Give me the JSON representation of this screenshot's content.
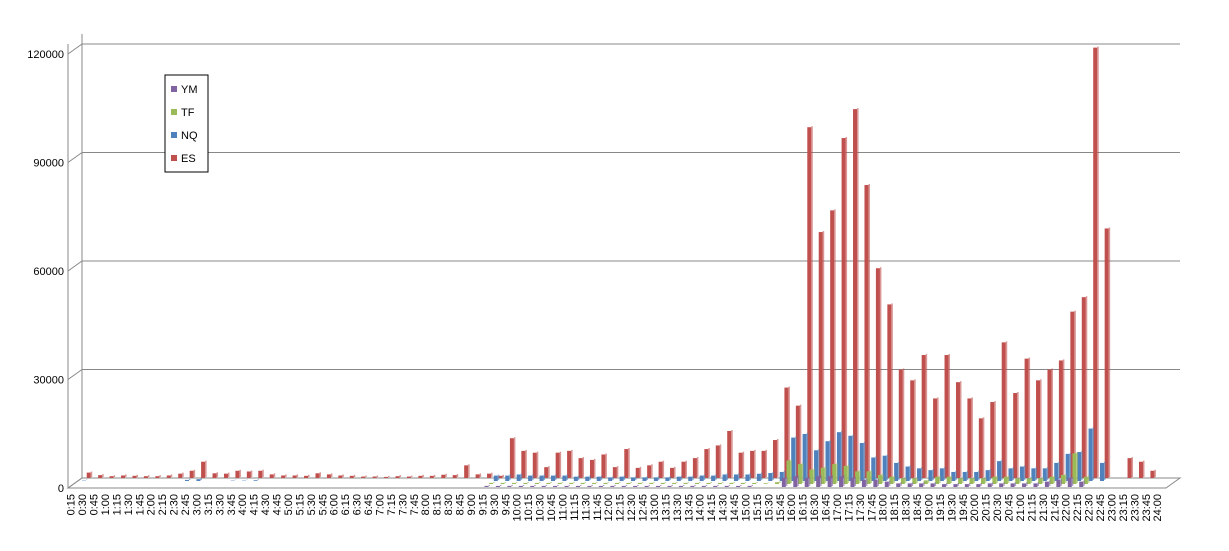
{
  "chart_data": {
    "type": "bar3d",
    "categories": [
      "0:15",
      "0:30",
      "0:45",
      "1:00",
      "1:15",
      "1:30",
      "1:45",
      "2:00",
      "2:15",
      "2:30",
      "2:45",
      "3:00",
      "3:15",
      "3:30",
      "3:45",
      "4:00",
      "4:15",
      "4:30",
      "4:45",
      "5:00",
      "5:15",
      "5:30",
      "5:45",
      "6:00",
      "6:15",
      "6:30",
      "6:45",
      "7:00",
      "7:15",
      "7:30",
      "7:45",
      "8:00",
      "8:15",
      "8:30",
      "8:45",
      "9:00",
      "9:15",
      "9:30",
      "9:45",
      "10:00",
      "10:15",
      "10:30",
      "10:45",
      "11:00",
      "11:15",
      "11:30",
      "11:45",
      "12:00",
      "12:15",
      "12:30",
      "12:45",
      "13:00",
      "13:15",
      "13:30",
      "13:45",
      "14:00",
      "14:15",
      "14:30",
      "14:45",
      "15:00",
      "15:15",
      "15:30",
      "15:45",
      "16:00",
      "16:15",
      "16:30",
      "16:45",
      "17:00",
      "17:15",
      "17:30",
      "17:45",
      "18:00",
      "18:15",
      "18:30",
      "18:45",
      "19:00",
      "19:15",
      "19:30",
      "19:45",
      "20:00",
      "20:15",
      "20:30",
      "20:45",
      "21:00",
      "21:15",
      "21:30",
      "21:45",
      "22:00",
      "22:15",
      "22:30",
      "22:45",
      "23:00",
      "23:15",
      "23:30",
      "23:45",
      "24:00"
    ],
    "series": [
      {
        "name": "YM",
        "color": "#8064a2",
        "values": [
          0,
          0,
          0,
          0,
          0,
          0,
          0,
          0,
          0,
          0,
          0,
          0,
          0,
          0,
          0,
          0,
          0,
          0,
          0,
          0,
          0,
          0,
          0,
          0,
          0,
          0,
          0,
          0,
          0,
          0,
          0,
          0,
          0,
          0,
          0,
          0,
          300,
          300,
          300,
          300,
          300,
          300,
          300,
          300,
          300,
          300,
          300,
          300,
          300,
          300,
          300,
          300,
          300,
          300,
          300,
          300,
          300,
          300,
          300,
          300,
          0,
          0,
          2500,
          3000,
          2500,
          3000,
          3000,
          3000,
          2500,
          2000,
          2000,
          1500,
          1000,
          1000,
          1000,
          1000,
          800,
          800,
          800,
          800,
          1000,
          1000,
          1000,
          1000,
          1000,
          1500,
          2000,
          2500,
          1500,
          0,
          0,
          0,
          0,
          0,
          0,
          0
        ]
      },
      {
        "name": "TF",
        "color": "#9bbb59",
        "values": [
          0,
          0,
          0,
          0,
          0,
          0,
          0,
          0,
          0,
          0,
          0,
          0,
          0,
          0,
          0,
          0,
          0,
          0,
          0,
          0,
          0,
          0,
          0,
          0,
          0,
          0,
          0,
          0,
          0,
          0,
          0,
          0,
          0,
          0,
          0,
          0,
          300,
          300,
          300,
          300,
          300,
          300,
          300,
          300,
          300,
          300,
          300,
          300,
          300,
          300,
          300,
          300,
          300,
          300,
          300,
          300,
          300,
          300,
          300,
          300,
          200,
          500,
          6500,
          5500,
          4000,
          4500,
          5500,
          5000,
          3500,
          3500,
          2500,
          2000,
          1500,
          1500,
          1000,
          2000,
          2000,
          1500,
          1500,
          1500,
          2000,
          2000,
          1500,
          1500,
          1500,
          2000,
          2500,
          8500,
          2000,
          0,
          0,
          0,
          0,
          0,
          0,
          0
        ]
      },
      {
        "name": "NQ",
        "color": "#4f81bd",
        "values": [
          100,
          0,
          0,
          0,
          0,
          0,
          0,
          0,
          0,
          300,
          500,
          0,
          0,
          100,
          100,
          200,
          0,
          0,
          0,
          0,
          0,
          0,
          0,
          0,
          0,
          0,
          0,
          0,
          0,
          0,
          0,
          0,
          0,
          0,
          0,
          0,
          1500,
          1500,
          1800,
          1500,
          1500,
          1500,
          1500,
          1200,
          1200,
          1200,
          1000,
          1200,
          1000,
          1000,
          1000,
          1000,
          1200,
          1200,
          1500,
          1500,
          1800,
          1800,
          1800,
          2000,
          2200,
          2500,
          12000,
          13000,
          8500,
          11000,
          13500,
          12500,
          10500,
          6500,
          7000,
          5000,
          4000,
          3500,
          3000,
          3500,
          2500,
          2500,
          2500,
          3000,
          5500,
          3500,
          4000,
          3500,
          3500,
          5000,
          7500,
          8000,
          14500,
          5000,
          0,
          0,
          0,
          0,
          0,
          0
        ]
      },
      {
        "name": "ES",
        "color": "#c0504d",
        "values": [
          1500,
          800,
          500,
          700,
          600,
          500,
          500,
          700,
          1200,
          2000,
          4500,
          1300,
          1200,
          2000,
          1800,
          2000,
          1000,
          700,
          700,
          600,
          1300,
          1000,
          700,
          600,
          400,
          400,
          300,
          500,
          400,
          600,
          600,
          900,
          800,
          3500,
          1000,
          1200,
          600,
          11000,
          7500,
          7000,
          3000,
          7000,
          7500,
          5500,
          5000,
          6500,
          3000,
          8000,
          2800,
          3500,
          4500,
          2800,
          4500,
          5500,
          8000,
          9000,
          13000,
          7000,
          7500,
          7500,
          10500,
          25000,
          20000,
          97000,
          68000,
          74000,
          94000,
          102000,
          81000,
          58000,
          48000,
          30000,
          27000,
          34000,
          22000,
          34000,
          26500,
          22000,
          16500,
          21000,
          37500,
          23500,
          33000,
          27000,
          30000,
          32500,
          46000,
          50000,
          119000,
          69000,
          0,
          5500,
          4500,
          2000,
          0,
          0
        ]
      }
    ],
    "ylim": [
      0,
      120000
    ],
    "yticks": [
      0,
      30000,
      60000,
      90000,
      120000
    ],
    "grid": true,
    "legend": "left"
  }
}
